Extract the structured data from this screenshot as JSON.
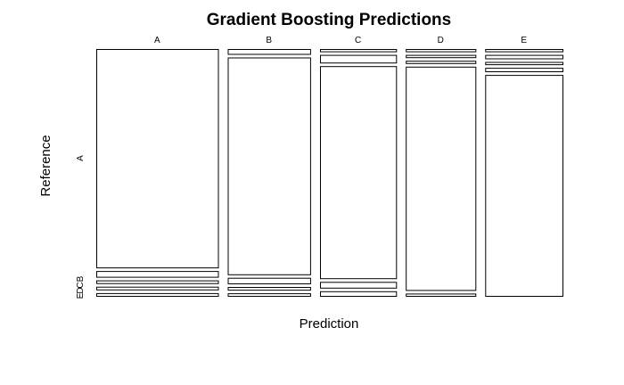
{
  "chart_data": {
    "type": "mosaic",
    "title": "Gradient Boosting Predictions",
    "xlabel": "Prediction",
    "ylabel": "Reference",
    "categories": [
      "A",
      "B",
      "C",
      "D",
      "E"
    ],
    "row_tick_labels": [
      "A",
      "B",
      "C",
      "D",
      "E"
    ],
    "column_shares": [
      0.285,
      0.193,
      0.178,
      0.163,
      0.181
    ],
    "cells": {
      "A": {
        "A": 0.939,
        "B": 0.025,
        "C": 0.012,
        "D": 0.012,
        "E": 0.012
      },
      "B": {
        "A": 0.021,
        "B": 0.932,
        "C": 0.024,
        "D": 0.012,
        "E": 0.011
      },
      "C": {
        "A": 0.01,
        "B": 0.033,
        "C": 0.912,
        "D": 0.025,
        "E": 0.02
      },
      "D": {
        "A": 0.01,
        "B": 0.01,
        "C": 0.01,
        "D": 0.96,
        "E": 0.01
      },
      "E": {
        "A": 0.01,
        "B": 0.015,
        "C": 0.01,
        "D": 0.015,
        "E": 0.95
      }
    }
  }
}
